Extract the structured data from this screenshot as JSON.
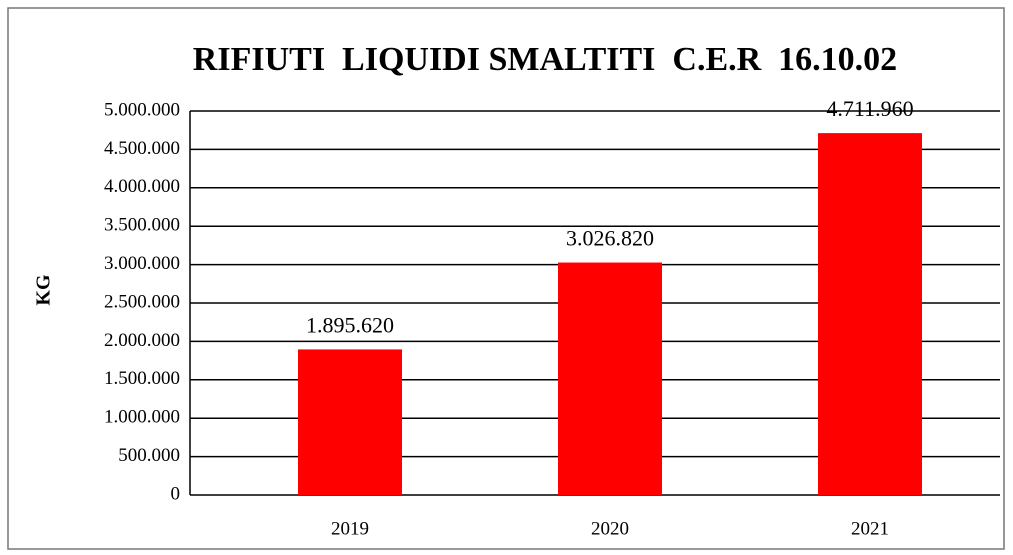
{
  "chart_data": {
    "type": "bar",
    "title": "RIFIUTI  LIQUIDI SMALTITI  C.E.R  16.10.02",
    "y_label": "KG",
    "categories": [
      "2019",
      "2020",
      "2021"
    ],
    "values": [
      1895620,
      3026820,
      4711960
    ],
    "value_labels": [
      "1.895.620",
      "3.026.820",
      "4.711.960"
    ],
    "color": "#ff0000",
    "ylim": [
      0,
      5000000
    ],
    "yticks": [
      0,
      {
        "value": 500000,
        "label": "500.000"
      },
      {
        "value": 1000000,
        "label": "1.000.000"
      },
      {
        "value": 1500000,
        "label": "1.500.000"
      },
      {
        "value": 2000000,
        "label": "2.000.000"
      },
      {
        "value": 2500000,
        "label": "2.500.000"
      },
      {
        "value": 3000000,
        "label": "3.000.000"
      },
      {
        "value": 3500000,
        "label": "3.500.000"
      },
      {
        "value": 4000000,
        "label": "4.000.000"
      },
      {
        "value": 4500000,
        "label": "4.500.000"
      },
      {
        "value": 5000000,
        "label": "5.000.000"
      }
    ],
    "grid": true
  }
}
